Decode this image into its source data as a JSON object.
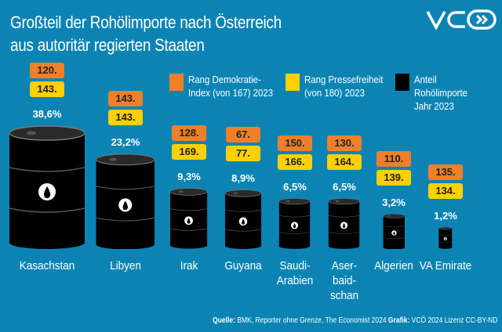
{
  "title": "Großteil der Rohölimporte nach Österreich\naus autoritär regierten Staaten",
  "logo": "VCÖ",
  "colors": {
    "background": "#0b84b4",
    "democracy": "#f07f2a",
    "press": "#fdd000",
    "share": "#000000"
  },
  "legend": [
    {
      "label": "Rang Demokratie-\nIndex (von 167) 2023",
      "color": "#f07f2a"
    },
    {
      "label": "Rang Pressefreiheit\n(von 180) 2023",
      "color": "#fdd000"
    },
    {
      "label": "Anteil Rohölimporte\nJahr 2023",
      "color": "#000000"
    }
  ],
  "chart_data": {
    "type": "bar",
    "title": "Großteil der Rohölimporte nach Österreich aus autoritär regierten Staaten",
    "categories": [
      "Kasachstan",
      "Libyen",
      "Irak",
      "Guyana",
      "Saudi-\nArabien",
      "Aser-\nbaid-\nschan",
      "Algerien",
      "VA Emirate"
    ],
    "series": [
      {
        "name": "Rang Demokratie-Index (von 167) 2023",
        "labels": [
          "120.",
          "143.",
          "128.",
          "67.",
          "150.",
          "130.",
          "110.",
          "135."
        ],
        "values": [
          120,
          143,
          128,
          67,
          150,
          130,
          110,
          135
        ]
      },
      {
        "name": "Rang Pressefreiheit (von 180) 2023",
        "labels": [
          "143.",
          "143.",
          "169.",
          "77.",
          "166.",
          "164.",
          "139.",
          "134."
        ],
        "values": [
          143,
          143,
          169,
          77,
          166,
          164,
          139,
          134
        ]
      },
      {
        "name": "Anteil Rohölimporte Jahr 2023",
        "labels": [
          "38,6%",
          "23,2%",
          "9,3%",
          "8,9%",
          "6,5%",
          "6,5%",
          "3,2%",
          "1,2%"
        ],
        "values": [
          38.6,
          23.2,
          9.3,
          8.9,
          6.5,
          6.5,
          3.2,
          1.2
        ]
      }
    ]
  },
  "footer": {
    "source_label": "Quelle:",
    "source": "BMK, Reporter ohne Grenze, The Economist 2024",
    "graphic_label": "Grafik:",
    "graphic": "VCÖ 2024 Lizenz CC-BY-ND"
  }
}
